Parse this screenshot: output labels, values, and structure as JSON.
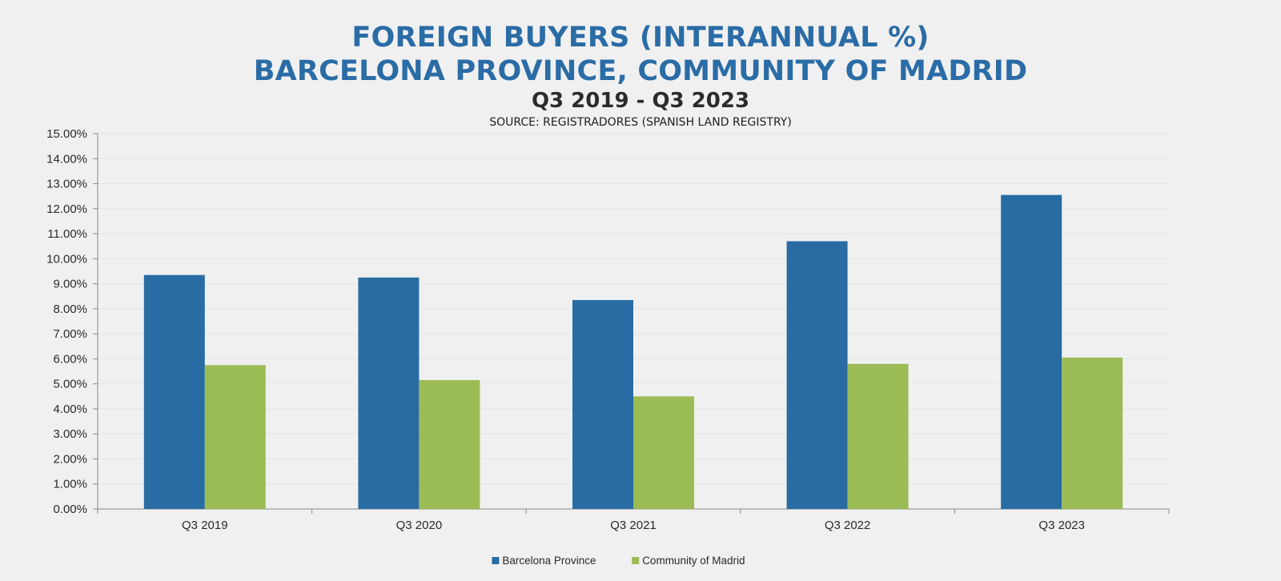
{
  "chart_data": {
    "type": "bar",
    "title": "FOREIGN BUYERS (INTERANNUAL %)",
    "title_line2": "BARCELONA PROVINCE, COMMUNITY OF MADRID",
    "subtitle": "Q3 2019 - Q3 2023",
    "source": "SOURCE: REGISTRADORES (SPANISH LAND REGISTRY)",
    "categories": [
      "Q3 2019",
      "Q3 2020",
      "Q3 2021",
      "Q3 2022",
      "Q3 2023"
    ],
    "series": [
      {
        "name": "Barcelona Province",
        "color": "#286ca3",
        "values": [
          9.35,
          9.25,
          8.35,
          10.7,
          12.55
        ]
      },
      {
        "name": "Community of Madrid",
        "color": "#9bbb55",
        "values": [
          5.75,
          5.15,
          4.5,
          5.8,
          6.05
        ]
      }
    ],
    "ylim": [
      0,
      15
    ],
    "ytick_step": 1,
    "ytick_format": "percent_2dp",
    "grid": true,
    "legend": "bottom-center",
    "xlabel": "",
    "ylabel": ""
  }
}
